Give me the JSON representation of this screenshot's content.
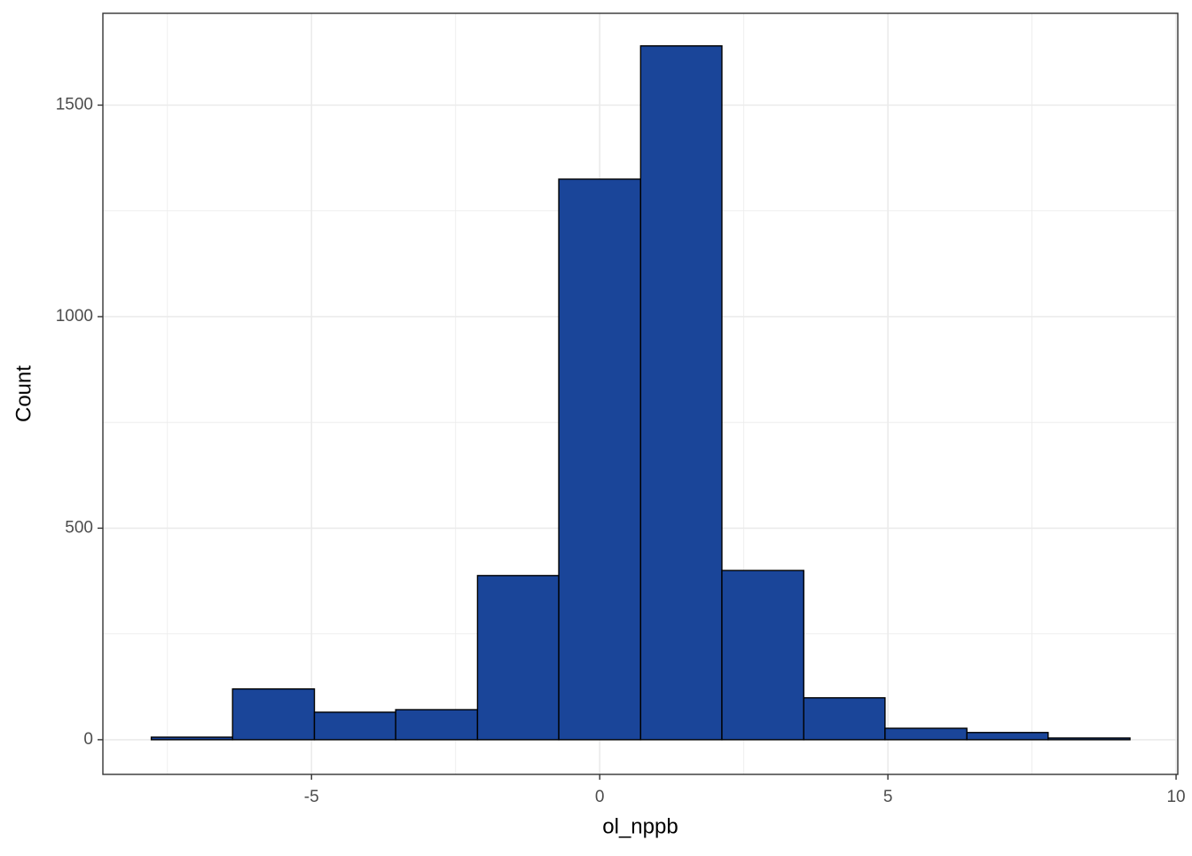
{
  "chart_data": {
    "type": "histogram",
    "x_label": "ol_nppb",
    "y_label": "Count",
    "bins": [
      -7.78,
      -6.37,
      -4.95,
      -3.54,
      -2.12,
      -0.71,
      0.71,
      2.12,
      3.54,
      4.95,
      6.37,
      7.78,
      9.2
    ],
    "counts": [
      6,
      120,
      65,
      71,
      388,
      1325,
      1640,
      400,
      99,
      27,
      17,
      4
    ],
    "color": "#1a4599",
    "edge_color": "#000000",
    "xlim": [
      -8.62,
      10.03
    ],
    "ylim": [
      -82,
      1717
    ],
    "xticks": [
      -5,
      0,
      5,
      10
    ],
    "yticks": [
      0,
      500,
      1000,
      1500
    ],
    "minor_xticks": [
      -7.5,
      -2.5,
      2.5,
      7.5
    ],
    "minor_yticks": [
      250,
      750,
      1250
    ],
    "grid": true
  }
}
